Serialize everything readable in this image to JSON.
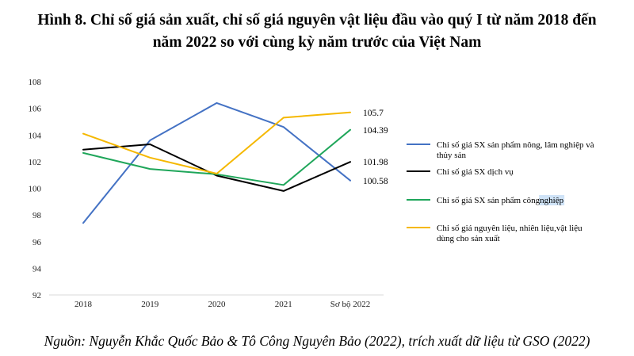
{
  "title_lines": [
    "Hình 8. Chỉ số giá sản xuất, chỉ số giá nguyên vật liệu đầu vào quý I từ năm 2018 đến",
    "năm 2022 so với cùng kỳ năm trước của Việt Nam"
  ],
  "source": "Nguồn: Nguyễn Khắc Quốc Bảo & Tô Công Nguyên Bảo (2022), trích xuất dữ liệu từ GSO (2022)",
  "chart_data": {
    "type": "line",
    "categories": [
      "2018",
      "2019",
      "2020",
      "2021",
      "Sơ bộ 2022"
    ],
    "ylim": [
      92,
      108
    ],
    "yticks": [
      92,
      94,
      96,
      98,
      100,
      102,
      104,
      106,
      108
    ],
    "grid": false,
    "legend_position": "right",
    "series": [
      {
        "name_lines": [
          "Chỉ số giá SX sản phẩm nông, lâm nghiệp và",
          "thủy sản"
        ],
        "color": "#4472C4",
        "values": [
          97.4,
          103.6,
          106.4,
          104.6,
          100.58
        ],
        "end_label": "100.58"
      },
      {
        "name_lines": [
          "Chỉ số giá SX dịch vụ"
        ],
        "color": "#000000",
        "values": [
          102.9,
          103.3,
          100.95,
          99.8,
          101.98
        ],
        "end_label": "101.98"
      },
      {
        "name_lines": [
          "Chỉ số giá SX sản phẩm công nghiệp"
        ],
        "color": "#1FA65A",
        "values": [
          102.65,
          101.45,
          101.05,
          100.25,
          104.39
        ],
        "end_label": "104.39",
        "highlight_word": "nghiệp"
      },
      {
        "name_lines": [
          "Chỉ số giá nguyên liệu, nhiên liệu,vật liệu",
          "dùng cho sản xuất"
        ],
        "color": "#F5B800",
        "values": [
          104.1,
          102.3,
          101.1,
          105.3,
          105.7
        ],
        "end_label": "105.7"
      }
    ]
  }
}
